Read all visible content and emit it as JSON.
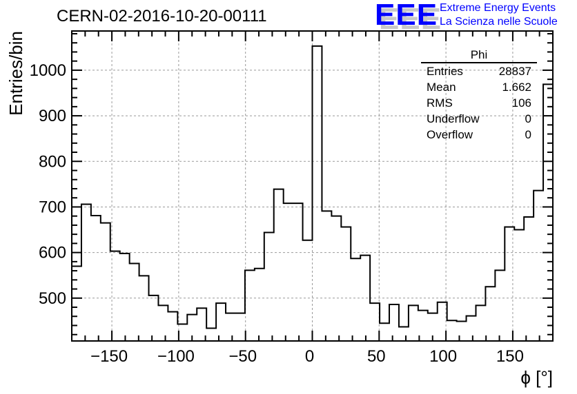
{
  "title": "CERN-02-2016-10-20-00111",
  "logo": {
    "text": "EEE",
    "line1": "Extreme Energy Events",
    "line2": "La Scienza nelle Scuole",
    "color": "#0000ff"
  },
  "stats": {
    "name": "Phi",
    "rows": [
      {
        "label": "Entries",
        "value": "28837"
      },
      {
        "label": "Mean",
        "value": "1.662"
      },
      {
        "label": "RMS",
        "value": "106"
      },
      {
        "label": "Underflow",
        "value": "0"
      },
      {
        "label": "Overflow",
        "value": "0"
      }
    ]
  },
  "chart_data": {
    "type": "bar",
    "style": "step-histogram",
    "title": "CERN-02-2016-10-20-00111",
    "xlabel": "ϕ [°]",
    "ylabel": "Entries/bin",
    "xlim": [
      -180,
      180
    ],
    "ylim": [
      406,
      1086
    ],
    "bins": 50,
    "grid": true,
    "xticks": [
      -150,
      -100,
      -50,
      0,
      50,
      100,
      150
    ],
    "xtick_labels": [
      "−150",
      "−100",
      "−50",
      "0",
      "50",
      "100",
      "150"
    ],
    "yticks": [
      500,
      600,
      700,
      800,
      900,
      1000
    ],
    "ytick_labels": [
      "500",
      "600",
      "700",
      "800",
      "900",
      "1000"
    ],
    "values": [
      570,
      706,
      681,
      665,
      603,
      598,
      576,
      549,
      506,
      484,
      470,
      443,
      464,
      478,
      434,
      489,
      467,
      467,
      561,
      565,
      644,
      739,
      708,
      708,
      627,
      1053,
      691,
      680,
      656,
      587,
      594,
      489,
      445,
      486,
      437,
      484,
      473,
      467,
      491,
      451,
      449,
      461,
      484,
      525,
      561,
      656,
      650,
      678,
      736,
      969
    ]
  }
}
